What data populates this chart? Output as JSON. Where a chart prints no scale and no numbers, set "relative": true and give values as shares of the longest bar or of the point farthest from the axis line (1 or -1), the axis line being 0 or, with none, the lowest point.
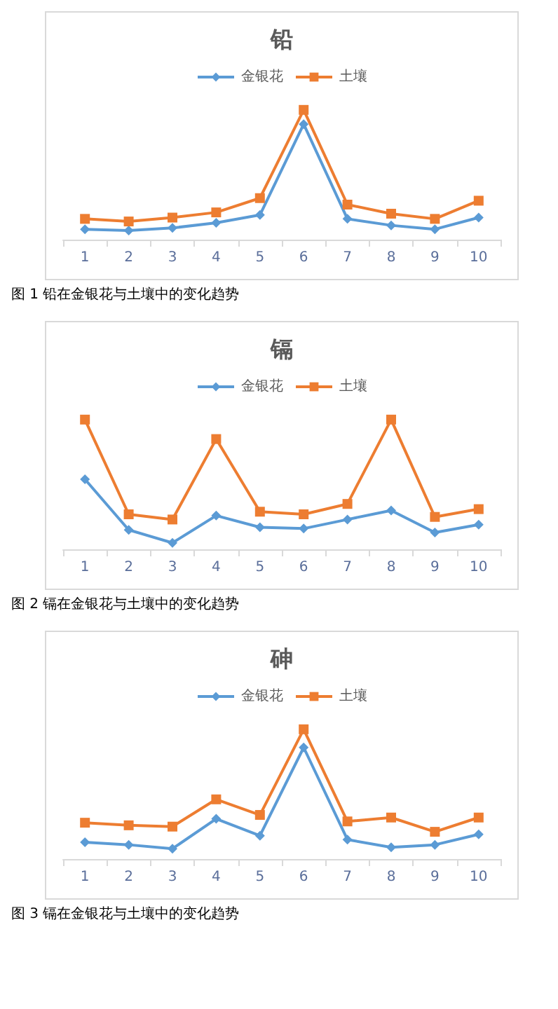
{
  "chart_data": [
    {
      "type": "line",
      "title": "铅",
      "categories": [
        "1",
        "2",
        "3",
        "4",
        "5",
        "6",
        "7",
        "8",
        "9",
        "10"
      ],
      "relative": true,
      "legend": "top",
      "grid": false,
      "annotations": [
        "图 1 铅在金银花与土壤中的变化趋势"
      ],
      "series": [
        {
          "name": "金银花",
          "color": "#5b9bd5",
          "marker": "diamond",
          "values": [
            0.08,
            0.07,
            0.09,
            0.13,
            0.19,
            0.89,
            0.16,
            0.11,
            0.08,
            0.17
          ]
        },
        {
          "name": "土壤",
          "color": "#ed7d31",
          "marker": "square",
          "values": [
            0.16,
            0.14,
            0.17,
            0.21,
            0.32,
            1,
            0.27,
            0.2,
            0.16,
            0.3
          ]
        }
      ]
    },
    {
      "type": "line",
      "title": "镉",
      "categories": [
        "1",
        "2",
        "3",
        "4",
        "5",
        "6",
        "7",
        "8",
        "9",
        "10"
      ],
      "relative": true,
      "legend": "top",
      "grid": false,
      "annotations": [
        "图 2 镉在金银花与土壤中的变化趋势"
      ],
      "series": [
        {
          "name": "金银花",
          "color": "#5b9bd5",
          "marker": "diamond",
          "values": [
            0.54,
            0.15,
            0.05,
            0.26,
            0.17,
            0.16,
            0.23,
            0.3,
            0.13,
            0.19
          ]
        },
        {
          "name": "土壤",
          "color": "#ed7d31",
          "marker": "square",
          "values": [
            1,
            0.27,
            0.23,
            0.85,
            0.29,
            0.27,
            0.35,
            1,
            0.25,
            0.31
          ]
        }
      ]
    },
    {
      "type": "line",
      "title": "砷",
      "categories": [
        "1",
        "2",
        "3",
        "4",
        "5",
        "6",
        "7",
        "8",
        "9",
        "10"
      ],
      "relative": true,
      "legend": "top",
      "grid": false,
      "annotations": [
        "图 3 镉在金银花与土壤中的变化趋势"
      ],
      "series": [
        {
          "name": "金银花",
          "color": "#5b9bd5",
          "marker": "diamond",
          "values": [
            0.13,
            0.11,
            0.08,
            0.31,
            0.18,
            0.86,
            0.15,
            0.09,
            0.11,
            0.19
          ]
        },
        {
          "name": "土壤",
          "color": "#ed7d31",
          "marker": "square",
          "values": [
            0.28,
            0.26,
            0.25,
            0.46,
            0.34,
            1,
            0.29,
            0.32,
            0.21,
            0.32
          ]
        }
      ]
    }
  ]
}
